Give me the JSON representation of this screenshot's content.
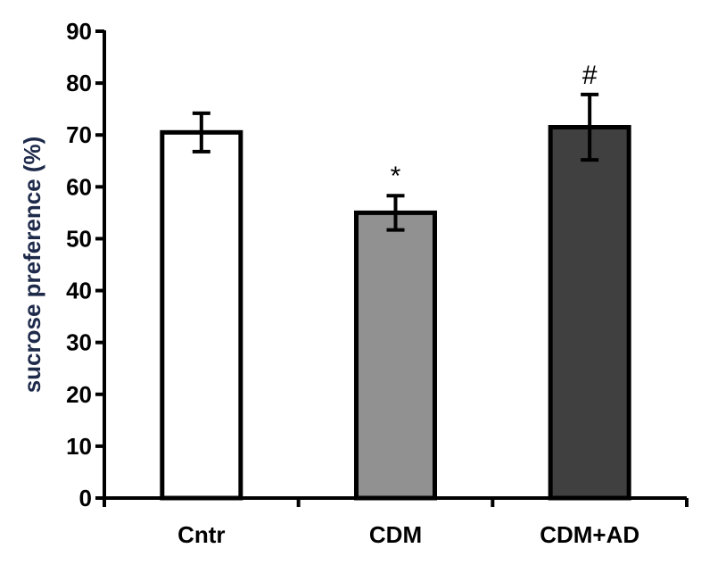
{
  "chart_data": {
    "type": "bar",
    "title": "",
    "xlabel": "",
    "ylabel": "sucrose preference (%)",
    "ylim": [
      0,
      90
    ],
    "yticks": [
      0,
      10,
      20,
      30,
      40,
      50,
      60,
      70,
      80,
      90
    ],
    "grid": false,
    "categories": [
      "Cntr",
      "CDM",
      "CDM+AD"
    ],
    "values": [
      70.5,
      55,
      71.5
    ],
    "errors": [
      3.7,
      3.3,
      6.3
    ],
    "annotations": [
      "",
      "*",
      "#"
    ],
    "colors": [
      "#ffffff",
      "#919191",
      "#404040"
    ],
    "edge_color": "#000000"
  }
}
